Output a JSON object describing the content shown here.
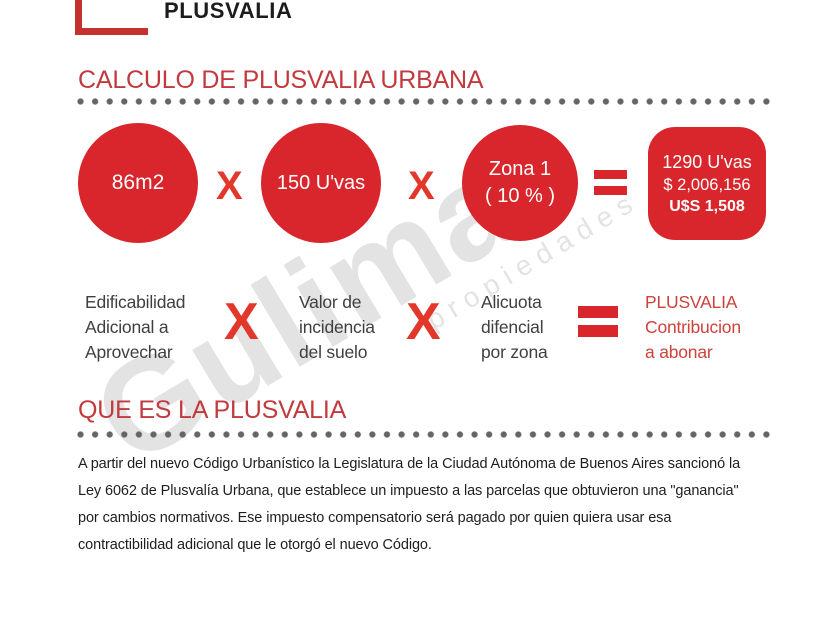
{
  "header": {
    "logo_text": "PLUSVALIA"
  },
  "watermark": {
    "name": "Gulimat",
    "tagline": "propiedades"
  },
  "colors": {
    "shape_red": "#D8262C",
    "heading_red": "#C23A3E",
    "operator_red": "#E2372B",
    "legend_result_red": "#CE423D",
    "label_gray": "#3F3F41",
    "dot_gray": "#656568",
    "text_black": "#1E1E1E"
  },
  "calc": {
    "title": "CALCULO DE PLUSVALIA URBANA",
    "multiply_symbol": "X",
    "circle1": "86m2",
    "circle2": "150 U'vas",
    "circle3": "Zona 1\n( 10 % )",
    "result_uvas": "1290 U'vas",
    "result_pesos": "$ 2,006,156",
    "result_usd": "U$S 1,508",
    "legend1": "Edificabilidad\nAdicional a\nAprovechar",
    "legend2": "Valor de\nincidencia\ndel suelo",
    "legend3": "Alicuota\ndifencial\npor zona",
    "legend_result": "PLUSVALIA\nContribucion\na abonar"
  },
  "about": {
    "title": "QUE ES LA PLUSVALIA",
    "paragraph": "A partir del nuevo Código Urbanístico la Legislatura de la Ciudad Autónoma de Buenos Aires sancionó la\nLey 6062 de Plusvalía Urbana, que establece un impuesto a las parcelas que obtuvieron una \"ganancia\"\npor cambios normativos. Ese impuesto compensatorio será pagado por quien quiera usar esa\ncontractibilidad adicional que le otorgó el nuevo Código."
  }
}
